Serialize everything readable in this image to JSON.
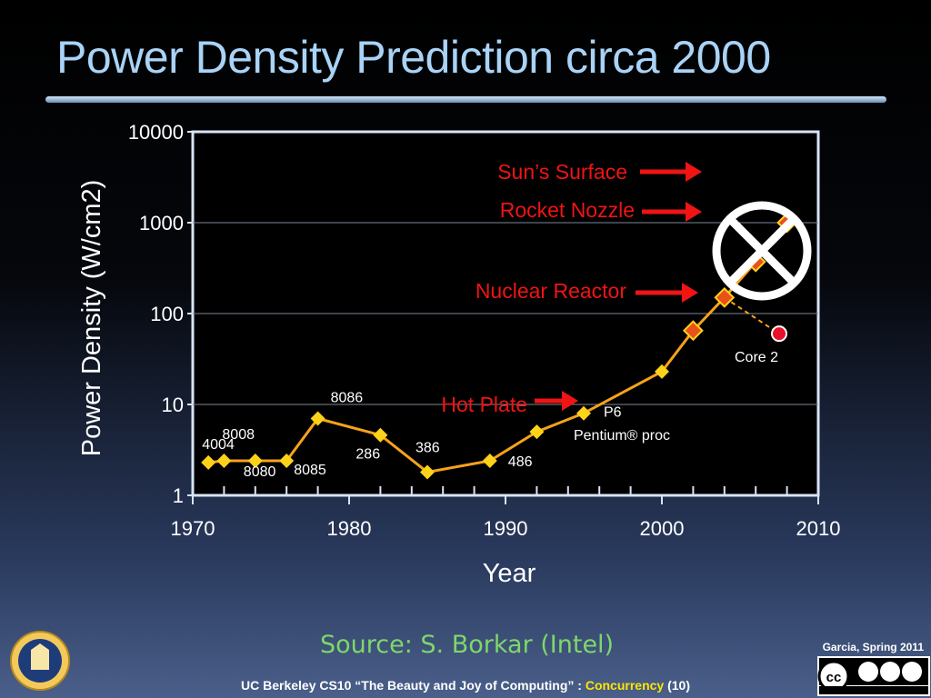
{
  "slide": {
    "title": "Power Density Prediction circa 2000",
    "source": "Source: S. Borkar (Intel)",
    "credit": "Garcia, Spring 2011",
    "footer_prefix": "UC Berkeley CS10 “The Beauty and Joy of Computing” : ",
    "footer_topic": "Concurrency",
    "footer_suffix": " (10)"
  },
  "chart_data": {
    "type": "line",
    "xlabel": "Year",
    "ylabel": "Power Density (W/cm2)",
    "xlim": [
      1970,
      2010
    ],
    "ylim": [
      1,
      10000
    ],
    "yscale": "log",
    "x_ticks": [
      "1970",
      "1980",
      "1990",
      "2000",
      "2010"
    ],
    "y_ticks": [
      "1",
      "10",
      "100",
      "1000",
      "10000"
    ],
    "series": [
      {
        "color": "#f7a21b",
        "marker_color": "#ffd21a",
        "points": [
          {
            "x": 1971,
            "y": 2.3,
            "label": "4004"
          },
          {
            "x": 1972,
            "y": 2.4,
            "label": "8008"
          },
          {
            "x": 1974,
            "y": 2.4,
            "label": "8080"
          },
          {
            "x": 1976,
            "y": 2.4,
            "label": "8085"
          },
          {
            "x": 1978,
            "y": 7,
            "label": "8086"
          },
          {
            "x": 1982,
            "y": 4.6,
            "label": "286"
          },
          {
            "x": 1985,
            "y": 1.8,
            "label": "386"
          },
          {
            "x": 1989,
            "y": 2.4,
            "label": "486"
          },
          {
            "x": 1992,
            "y": 5
          },
          {
            "x": 1995,
            "y": 8,
            "label": "P6"
          },
          {
            "x": 2000,
            "y": 23
          },
          {
            "x": 2002,
            "y": 65
          },
          {
            "x": 2004,
            "y": 150
          },
          {
            "x": 2006,
            "y": 370
          },
          {
            "x": 2008,
            "y": 1000
          }
        ]
      }
    ],
    "predicted_from_year": 2002,
    "predicted_marker_color": "#e8501c",
    "actual_point": {
      "x": 2007.5,
      "y": 60,
      "label": "Core 2",
      "color": "#e8102a"
    },
    "annotations": [
      {
        "text": "Sun’s Surface",
        "y": 6000
      },
      {
        "text": "Rocket Nozzle",
        "y": 1000
      },
      {
        "text": "Nuclear Reactor",
        "y": 100
      },
      {
        "text": "Hot Plate",
        "y": 10
      }
    ],
    "extra_labels": [
      "Pentium® proc"
    ],
    "annotation_color": "#f01414",
    "crossout_color": "#ffffff"
  }
}
